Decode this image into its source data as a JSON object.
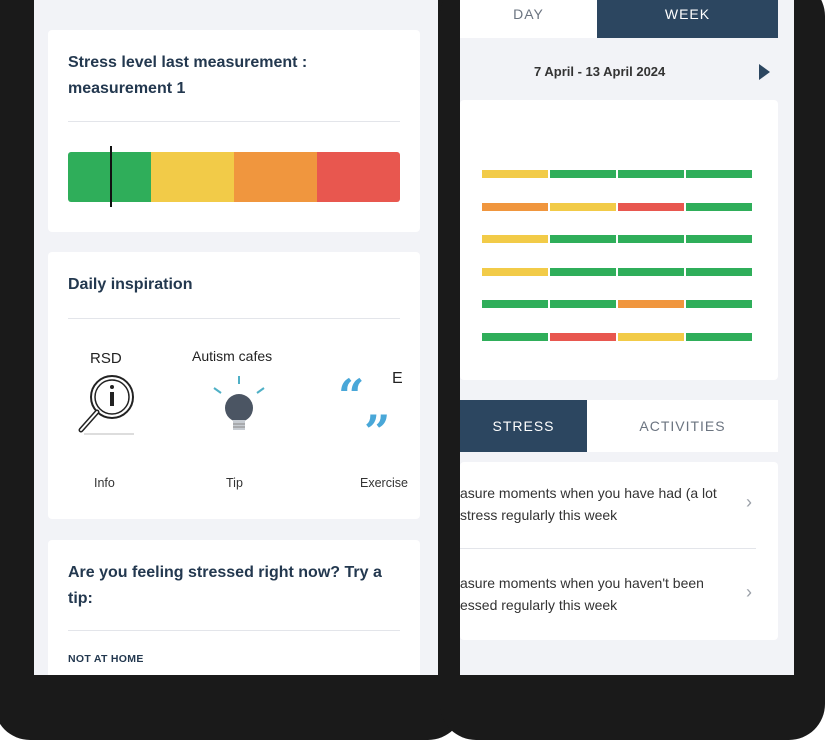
{
  "left_screen": {
    "stress_card": {
      "title": "Stress level last measurement : measurement 1",
      "segments": [
        {
          "name": "low",
          "color": "#2fae5a"
        },
        {
          "name": "moderate",
          "color": "#f2cb48"
        },
        {
          "name": "high",
          "color": "#f0963e"
        },
        {
          "name": "very-high",
          "color": "#e8574f"
        }
      ],
      "marker_fraction": 0.13
    },
    "inspiration_card": {
      "title": "Daily inspiration",
      "items": [
        {
          "title": "RSD",
          "icon": "info-magnifier-icon",
          "type": "Info"
        },
        {
          "title": "Autism cafes",
          "icon": "lightbulb-icon",
          "type": "Tip"
        },
        {
          "title": "E",
          "icon": "quote-icon",
          "type": "Exercise"
        }
      ]
    },
    "tip_card": {
      "title": "Are you feeling stressed right now? Try a tip:",
      "section": "NOT AT HOME"
    }
  },
  "right_screen": {
    "tabs": {
      "day": "DAY",
      "week": "WEEK"
    },
    "date_range": "7 April - 13 April 2024",
    "next_icon": "play-right-icon",
    "week_grid": [
      [
        "#f2cb48",
        "#2fae5a",
        "#2fae5a",
        "#2fae5a"
      ],
      [
        "#f0963e",
        "#f2cb48",
        "#e8574f",
        "#2fae5a"
      ],
      [
        "#f2cb48",
        "#2fae5a",
        "#2fae5a",
        "#2fae5a"
      ],
      [
        "#f2cb48",
        "#2fae5a",
        "#2fae5a",
        "#2fae5a"
      ],
      [
        "#2fae5a",
        "#2fae5a",
        "#f0963e",
        "#2fae5a"
      ],
      [
        "#2fae5a",
        "#e8574f",
        "#f2cb48",
        "#2fae5a"
      ]
    ],
    "bottom_tabs": {
      "stress": "STRESS",
      "activities": "ACTIVITIES"
    },
    "list_items": [
      {
        "line1": "asure moments when you have had (a lot",
        "line2": "stress regularly this week"
      },
      {
        "line1": "asure moments when you haven't been",
        "line2": "essed regularly this week"
      }
    ],
    "colors": {
      "accent": "#2c4660",
      "green": "#2fae5a",
      "yellow": "#f2cb48",
      "orange": "#f0963e",
      "red": "#e8574f"
    }
  }
}
